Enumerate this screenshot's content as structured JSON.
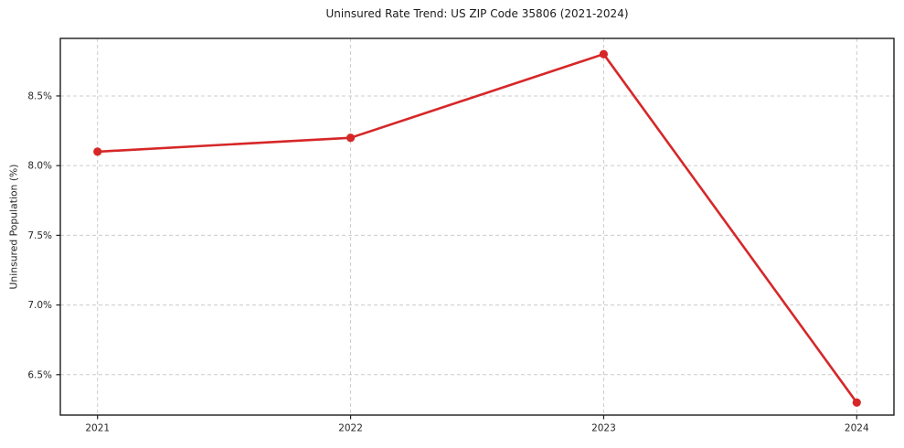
{
  "chart_data": {
    "type": "line",
    "title": "Uninsured Rate Trend: US ZIP Code 35806 (2021-2024)",
    "ylabel": "Uninsured Population (%)",
    "xlabel": "",
    "x": [
      2021,
      2022,
      2023,
      2024
    ],
    "series": [
      {
        "name": "Uninsured rate",
        "values": [
          8.1,
          8.2,
          8.8,
          6.3
        ]
      }
    ],
    "x_ticks": [
      {
        "value": 2021,
        "label": "2021"
      },
      {
        "value": 2022,
        "label": "2022"
      },
      {
        "value": 2023,
        "label": "2023"
      },
      {
        "value": 2024,
        "label": "2024"
      }
    ],
    "y_ticks": [
      {
        "value": 6.5,
        "label": "6.5%"
      },
      {
        "value": 7.0,
        "label": "7.0%"
      },
      {
        "value": 7.5,
        "label": "7.5%"
      },
      {
        "value": 8.0,
        "label": "8.0%"
      },
      {
        "value": 8.5,
        "label": "8.5%"
      }
    ],
    "xlim": [
      2020.853,
      2024.147
    ],
    "ylim": [
      6.21,
      8.913
    ],
    "grid": true,
    "grid_style": "dashed",
    "legend": false,
    "marker": "circle",
    "colors": {
      "line": "#d62728",
      "grid": "#cccccc",
      "axis": "#1c1c1c",
      "text": "#262626",
      "background": "#ffffff"
    }
  }
}
